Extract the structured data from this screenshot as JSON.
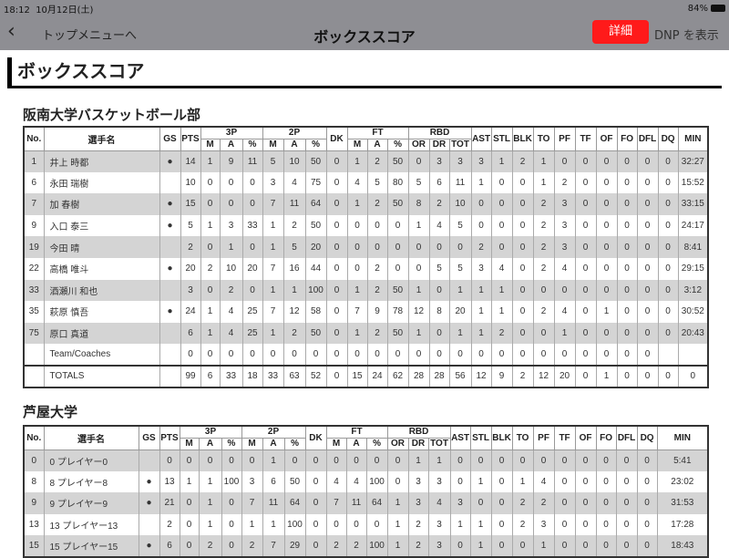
{
  "status_bar": {
    "time": "18:12",
    "date": "10月12日(土)",
    "battery": "84%"
  },
  "nav": {
    "back_label": "トップメニューへ",
    "title": "ボックススコア",
    "detail_button": "詳細",
    "dnp_button": "DNP を表示"
  },
  "page_heading": "ボックススコア",
  "columns": {
    "no": "No.",
    "name": "選手名",
    "gs": "GS",
    "pts": "PTS",
    "g3p": "3P",
    "g2p": "2P",
    "dk": "DK",
    "ft": "FT",
    "rbd": "RBD",
    "m": "M",
    "a": "A",
    "pct": "%",
    "or": "OR",
    "dr": "DR",
    "tot": "TOT",
    "ast": "AST",
    "stl": "STL",
    "blk": "BLK",
    "to": "TO",
    "pf": "PF",
    "tf": "TF",
    "of": "OF",
    "fo": "FO",
    "dfl": "DFL",
    "dq": "DQ",
    "min": "MIN"
  },
  "teams": [
    {
      "name": "阪南大学バスケットボール部",
      "rows": [
        [
          "1",
          "井上 時都",
          "●",
          "14",
          "1",
          "9",
          "11",
          "5",
          "10",
          "50",
          "0",
          "1",
          "2",
          "50",
          "0",
          "3",
          "3",
          "3",
          "1",
          "2",
          "1",
          "0",
          "0",
          "0",
          "0",
          "0",
          "0",
          "32:27"
        ],
        [
          "6",
          "永田 瑞樹",
          "",
          "10",
          "0",
          "0",
          "0",
          "3",
          "4",
          "75",
          "0",
          "4",
          "5",
          "80",
          "5",
          "6",
          "11",
          "1",
          "0",
          "0",
          "1",
          "2",
          "0",
          "0",
          "0",
          "0",
          "0",
          "15:52"
        ],
        [
          "7",
          "加 春樹",
          "●",
          "15",
          "0",
          "0",
          "0",
          "7",
          "11",
          "64",
          "0",
          "1",
          "2",
          "50",
          "8",
          "2",
          "10",
          "0",
          "0",
          "0",
          "2",
          "3",
          "0",
          "0",
          "0",
          "0",
          "0",
          "33:15"
        ],
        [
          "9",
          "入口 泰三",
          "●",
          "5",
          "1",
          "3",
          "33",
          "1",
          "2",
          "50",
          "0",
          "0",
          "0",
          "0",
          "1",
          "4",
          "5",
          "0",
          "0",
          "0",
          "2",
          "3",
          "0",
          "0",
          "0",
          "0",
          "0",
          "24:17"
        ],
        [
          "19",
          "今田 晴",
          "",
          "2",
          "0",
          "1",
          "0",
          "1",
          "5",
          "20",
          "0",
          "0",
          "0",
          "0",
          "0",
          "0",
          "0",
          "2",
          "0",
          "0",
          "2",
          "3",
          "0",
          "0",
          "0",
          "0",
          "0",
          "8:41"
        ],
        [
          "22",
          "高橋 唯斗",
          "●",
          "20",
          "2",
          "10",
          "20",
          "7",
          "16",
          "44",
          "0",
          "0",
          "2",
          "0",
          "0",
          "5",
          "5",
          "3",
          "4",
          "0",
          "2",
          "4",
          "0",
          "0",
          "0",
          "0",
          "0",
          "29:15"
        ],
        [
          "33",
          "酒瀬川 和也",
          "",
          "3",
          "0",
          "2",
          "0",
          "1",
          "1",
          "100",
          "0",
          "1",
          "2",
          "50",
          "1",
          "0",
          "1",
          "1",
          "1",
          "0",
          "0",
          "0",
          "0",
          "0",
          "0",
          "0",
          "0",
          "3:12"
        ],
        [
          "35",
          "萩原 慎吾",
          "●",
          "24",
          "1",
          "4",
          "25",
          "7",
          "12",
          "58",
          "0",
          "7",
          "9",
          "78",
          "12",
          "8",
          "20",
          "1",
          "1",
          "0",
          "2",
          "4",
          "0",
          "1",
          "0",
          "0",
          "0",
          "30:52"
        ],
        [
          "75",
          "原口 真道",
          "",
          "6",
          "1",
          "4",
          "25",
          "1",
          "2",
          "50",
          "0",
          "1",
          "2",
          "50",
          "1",
          "0",
          "1",
          "1",
          "2",
          "0",
          "0",
          "1",
          "0",
          "0",
          "0",
          "0",
          "0",
          "20:43"
        ],
        [
          "",
          "Team/Coaches",
          "",
          "0",
          "0",
          "0",
          "0",
          "0",
          "0",
          "0",
          "0",
          "0",
          "0",
          "0",
          "0",
          "0",
          "0",
          "0",
          "0",
          "0",
          "0",
          "0",
          "0",
          "0",
          "0",
          "0",
          "",
          ""
        ],
        [
          "",
          "TOTALS",
          "",
          "99",
          "6",
          "33",
          "18",
          "33",
          "63",
          "52",
          "0",
          "15",
          "24",
          "62",
          "28",
          "28",
          "56",
          "12",
          "9",
          "2",
          "12",
          "20",
          "0",
          "1",
          "0",
          "0",
          "0",
          "0"
        ]
      ]
    },
    {
      "name": "芦屋大学",
      "rows": [
        [
          "0",
          "0 プレイヤー0",
          "",
          "0",
          "0",
          "0",
          "0",
          "0",
          "1",
          "0",
          "0",
          "0",
          "0",
          "0",
          "0",
          "1",
          "1",
          "0",
          "0",
          "0",
          "0",
          "0",
          "0",
          "0",
          "0",
          "0",
          "0",
          "5:41"
        ],
        [
          "8",
          "8 プレイヤー8",
          "●",
          "13",
          "1",
          "1",
          "100",
          "3",
          "6",
          "50",
          "0",
          "4",
          "4",
          "100",
          "0",
          "3",
          "3",
          "0",
          "1",
          "0",
          "1",
          "4",
          "0",
          "0",
          "0",
          "0",
          "0",
          "23:02"
        ],
        [
          "9",
          "9 プレイヤー9",
          "●",
          "21",
          "0",
          "1",
          "0",
          "7",
          "11",
          "64",
          "0",
          "7",
          "11",
          "64",
          "1",
          "3",
          "4",
          "3",
          "0",
          "0",
          "2",
          "2",
          "0",
          "0",
          "0",
          "0",
          "0",
          "31:53"
        ],
        [
          "13",
          "13 プレイヤー13",
          "",
          "2",
          "0",
          "1",
          "0",
          "1",
          "1",
          "100",
          "0",
          "0",
          "0",
          "0",
          "1",
          "2",
          "3",
          "1",
          "1",
          "0",
          "2",
          "3",
          "0",
          "0",
          "0",
          "0",
          "0",
          "17:28"
        ],
        [
          "15",
          "15 プレイヤー15",
          "●",
          "6",
          "0",
          "2",
          "0",
          "2",
          "7",
          "29",
          "0",
          "2",
          "2",
          "100",
          "1",
          "2",
          "3",
          "0",
          "1",
          "0",
          "0",
          "1",
          "0",
          "0",
          "0",
          "0",
          "0",
          "18:43"
        ]
      ]
    }
  ]
}
